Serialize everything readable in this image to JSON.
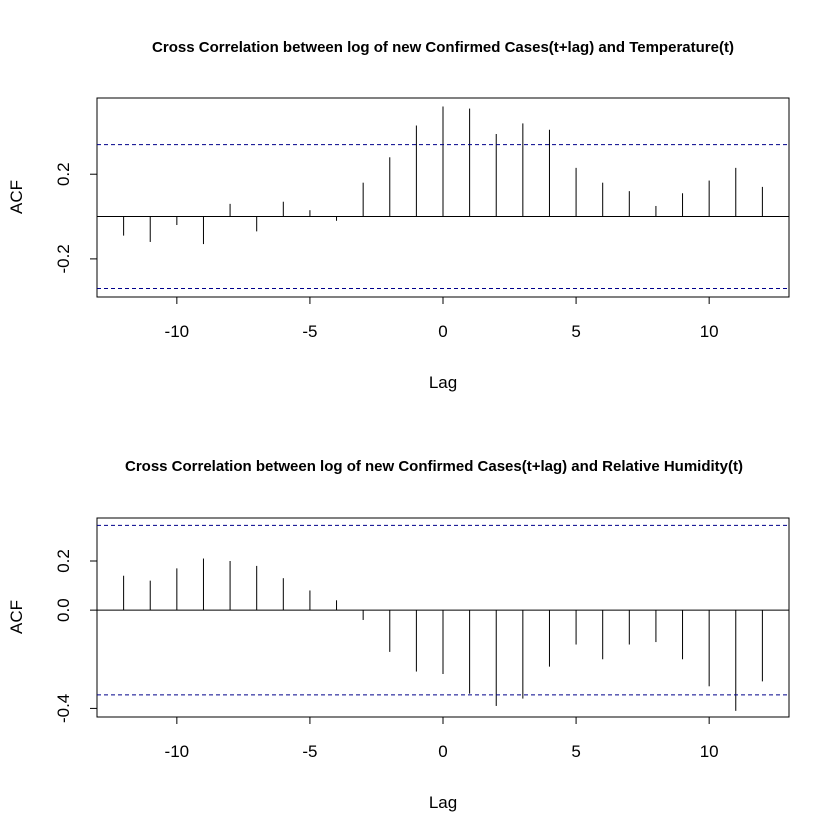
{
  "chart_data": [
    {
      "type": "bar",
      "title": "Cross Correlation between log of new Confirmed Cases(t+lag) and Temperature(t)",
      "xlabel": "Lag",
      "ylabel": "ACF",
      "xlim": [
        -13,
        13
      ],
      "ylim": [
        -0.38,
        0.56
      ],
      "x_ticks": [
        -10,
        -5,
        0,
        5,
        10
      ],
      "x_tick_labels": [
        "-10",
        "-5",
        "0",
        "5",
        "10"
      ],
      "y_ticks": [
        -0.2,
        0.2
      ],
      "y_tick_labels": [
        "-0.2",
        "0.2"
      ],
      "confidence_bounds": [
        0.34,
        -0.34
      ],
      "x": [
        -12,
        -11,
        -10,
        -9,
        -8,
        -7,
        -6,
        -5,
        -4,
        -3,
        -2,
        -1,
        0,
        1,
        2,
        3,
        4,
        5,
        6,
        7,
        8,
        9,
        10,
        11,
        12
      ],
      "values": [
        -0.09,
        -0.12,
        -0.04,
        -0.13,
        0.06,
        -0.07,
        0.07,
        0.03,
        -0.02,
        0.16,
        0.28,
        0.43,
        0.52,
        0.51,
        0.39,
        0.44,
        0.41,
        0.23,
        0.16,
        0.12,
        0.05,
        0.11,
        0.17,
        0.23,
        0.14
      ],
      "bound_color": "#00008b"
    },
    {
      "type": "bar",
      "title": "Cross Correlation between log of new Confirmed Cases(t+lag) and Relative Humidity(t)",
      "xlabel": "Lag",
      "ylabel": "ACF",
      "xlim": [
        -13,
        13
      ],
      "ylim": [
        -0.435,
        0.375
      ],
      "x_ticks": [
        -10,
        -5,
        0,
        5,
        10
      ],
      "x_tick_labels": [
        "-10",
        "-5",
        "0",
        "5",
        "10"
      ],
      "y_ticks": [
        -0.4,
        0.0,
        0.2
      ],
      "y_tick_labels": [
        "-0.4",
        "0.0",
        "0.2"
      ],
      "confidence_bounds": [
        0.345,
        -0.345
      ],
      "x": [
        -12,
        -11,
        -10,
        -9,
        -8,
        -7,
        -6,
        -5,
        -4,
        -3,
        -2,
        -1,
        0,
        1,
        2,
        3,
        4,
        5,
        6,
        7,
        8,
        9,
        10,
        11,
        12
      ],
      "values": [
        0.14,
        0.12,
        0.17,
        0.21,
        0.2,
        0.18,
        0.13,
        0.08,
        0.04,
        -0.04,
        -0.17,
        -0.25,
        -0.26,
        -0.34,
        -0.39,
        -0.36,
        -0.23,
        -0.14,
        -0.2,
        -0.14,
        -0.13,
        -0.2,
        -0.31,
        -0.41,
        -0.29
      ],
      "bound_color": "#00008b"
    }
  ]
}
